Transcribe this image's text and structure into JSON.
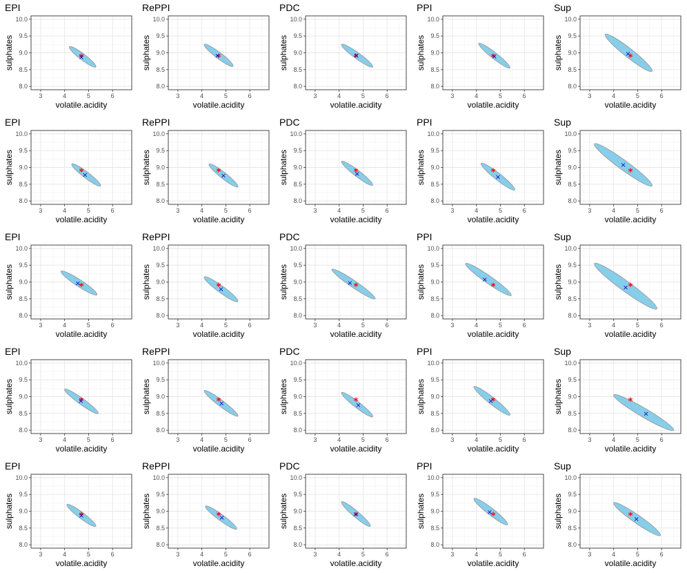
{
  "colors": {
    "ellipse_fill": "#87CEEB",
    "ellipse_stroke": "#999999",
    "estimate_marker": "#0000CC",
    "true_marker": "#FF0000",
    "panel_border": "#333333",
    "grid_major": "#E6E6E6",
    "grid_minor": "#F2F2F2"
  },
  "chart_data": {
    "type": "scatter",
    "description_keys": [
      "methods",
      "rows"
    ],
    "xlabel": "volatile.acidity",
    "ylabel": "sulphates",
    "xlim": [
      2.6,
      6.8
    ],
    "ylim": [
      7.9,
      10.1
    ],
    "xticks": [
      "3",
      "4",
      "5",
      "6"
    ],
    "yticks": [
      "8.0",
      "8.5",
      "9.0",
      "9.5",
      "10.0"
    ],
    "true_point": [
      4.7,
      8.88
    ],
    "markers": {
      "estimate": "×",
      "true": "*"
    },
    "methods": [
      "EPI",
      "RePPI",
      "PDC",
      "PPI",
      "Sup"
    ],
    "rows": [
      [
        {
          "title": "EPI",
          "ellipse": {
            "x1": 4.2,
            "y1": 9.18,
            "x2": 5.3,
            "y2": 8.58,
            "minor": 0.09
          },
          "estimate": [
            4.7,
            8.88
          ]
        },
        {
          "title": "RePPI",
          "ellipse": {
            "x1": 4.1,
            "y1": 9.25,
            "x2": 5.3,
            "y2": 8.6,
            "minor": 0.09
          },
          "estimate": [
            4.65,
            8.92
          ]
        },
        {
          "title": "PDC",
          "ellipse": {
            "x1": 4.1,
            "y1": 9.25,
            "x2": 5.4,
            "y2": 8.58,
            "minor": 0.09
          },
          "estimate": [
            4.72,
            8.93
          ]
        },
        {
          "title": "PPI",
          "ellipse": {
            "x1": 4.1,
            "y1": 9.28,
            "x2": 5.4,
            "y2": 8.55,
            "minor": 0.09
          },
          "estimate": [
            4.75,
            8.9
          ]
        },
        {
          "title": "Sup",
          "ellipse": {
            "x1": 3.65,
            "y1": 9.55,
            "x2": 5.6,
            "y2": 8.45,
            "minor": 0.13
          },
          "estimate": [
            4.6,
            8.98
          ]
        }
      ],
      [
        {
          "title": "EPI",
          "ellipse": {
            "x1": 4.3,
            "y1": 9.1,
            "x2": 5.5,
            "y2": 8.45,
            "minor": 0.09
          },
          "estimate": [
            4.85,
            8.78
          ]
        },
        {
          "title": "RePPI",
          "ellipse": {
            "x1": 4.3,
            "y1": 9.1,
            "x2": 5.5,
            "y2": 8.42,
            "minor": 0.09
          },
          "estimate": [
            4.9,
            8.76
          ]
        },
        {
          "title": "PDC",
          "ellipse": {
            "x1": 4.1,
            "y1": 9.18,
            "x2": 5.4,
            "y2": 8.47,
            "minor": 0.09
          },
          "estimate": [
            4.75,
            8.82
          ]
        },
        {
          "title": "PPI",
          "ellipse": {
            "x1": 4.2,
            "y1": 9.12,
            "x2": 5.6,
            "y2": 8.33,
            "minor": 0.1
          },
          "estimate": [
            4.9,
            8.72
          ]
        },
        {
          "title": "Sup",
          "ellipse": {
            "x1": 3.2,
            "y1": 9.7,
            "x2": 5.6,
            "y2": 8.45,
            "minor": 0.14
          },
          "estimate": [
            4.4,
            9.08
          ]
        }
      ],
      [
        {
          "title": "EPI",
          "ellipse": {
            "x1": 3.85,
            "y1": 9.32,
            "x2": 5.35,
            "y2": 8.62,
            "minor": 0.1
          },
          "estimate": [
            4.55,
            8.97
          ]
        },
        {
          "title": "RePPI",
          "ellipse": {
            "x1": 4.1,
            "y1": 9.15,
            "x2": 5.5,
            "y2": 8.42,
            "minor": 0.1
          },
          "estimate": [
            4.8,
            8.79
          ]
        },
        {
          "title": "PDC",
          "ellipse": {
            "x1": 3.7,
            "y1": 9.38,
            "x2": 5.5,
            "y2": 8.5,
            "minor": 0.1
          },
          "estimate": [
            4.45,
            8.98
          ]
        },
        {
          "title": "PPI",
          "ellipse": {
            "x1": 3.55,
            "y1": 9.55,
            "x2": 5.45,
            "y2": 8.6,
            "minor": 0.11
          },
          "estimate": [
            4.35,
            9.08
          ]
        },
        {
          "title": "Sup",
          "ellipse": {
            "x1": 3.2,
            "y1": 9.55,
            "x2": 5.8,
            "y2": 8.2,
            "minor": 0.15
          },
          "estimate": [
            4.5,
            8.85
          ]
        }
      ],
      [
        {
          "title": "EPI",
          "ellipse": {
            "x1": 4.0,
            "y1": 9.22,
            "x2": 5.4,
            "y2": 8.5,
            "minor": 0.09
          },
          "estimate": [
            4.68,
            8.88
          ]
        },
        {
          "title": "RePPI",
          "ellipse": {
            "x1": 4.1,
            "y1": 9.18,
            "x2": 5.5,
            "y2": 8.42,
            "minor": 0.09
          },
          "estimate": [
            4.82,
            8.8
          ]
        },
        {
          "title": "PDC",
          "ellipse": {
            "x1": 4.1,
            "y1": 9.12,
            "x2": 5.4,
            "y2": 8.4,
            "minor": 0.09
          },
          "estimate": [
            4.8,
            8.75
          ]
        },
        {
          "title": "PPI",
          "ellipse": {
            "x1": 3.9,
            "y1": 9.3,
            "x2": 5.4,
            "y2": 8.45,
            "minor": 0.1
          },
          "estimate": [
            4.6,
            8.88
          ]
        },
        {
          "title": "Sup",
          "ellipse": {
            "x1": 4.0,
            "y1": 9.05,
            "x2": 6.5,
            "y2": 8.0,
            "minor": 0.13
          },
          "estimate": [
            5.35,
            8.5
          ]
        }
      ],
      [
        {
          "title": "EPI",
          "ellipse": {
            "x1": 4.1,
            "y1": 9.2,
            "x2": 5.3,
            "y2": 8.55,
            "minor": 0.09
          },
          "estimate": [
            4.7,
            8.88
          ]
        },
        {
          "title": "RePPI",
          "ellipse": {
            "x1": 4.15,
            "y1": 9.15,
            "x2": 5.45,
            "y2": 8.47,
            "minor": 0.09
          },
          "estimate": [
            4.83,
            8.81
          ]
        },
        {
          "title": "PDC",
          "ellipse": {
            "x1": 4.1,
            "y1": 9.28,
            "x2": 5.3,
            "y2": 8.55,
            "minor": 0.09
          },
          "estimate": [
            4.7,
            8.92
          ]
        },
        {
          "title": "PPI",
          "ellipse": {
            "x1": 3.9,
            "y1": 9.38,
            "x2": 5.3,
            "y2": 8.6,
            "minor": 0.1
          },
          "estimate": [
            4.55,
            8.98
          ]
        },
        {
          "title": "Sup",
          "ellipse": {
            "x1": 4.0,
            "y1": 9.25,
            "x2": 5.95,
            "y2": 8.28,
            "minor": 0.12
          },
          "estimate": [
            4.95,
            8.77
          ]
        }
      ]
    ]
  }
}
